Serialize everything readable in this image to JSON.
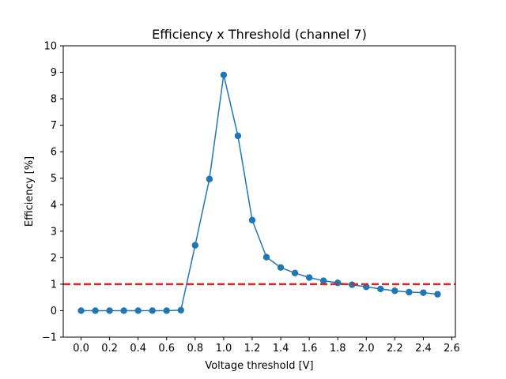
{
  "chart_data": {
    "type": "line",
    "title": "Efficiency x Threshold (channel 7)",
    "xlabel": "Voltage threshold [V]",
    "ylabel": "Efficiency [%]",
    "xlim": [
      -0.125,
      2.625
    ],
    "ylim": [
      -1,
      10
    ],
    "x_ticks": [
      0.0,
      0.2,
      0.4,
      0.6,
      0.8,
      1.0,
      1.2,
      1.4,
      1.6,
      1.8,
      2.0,
      2.2,
      2.4,
      2.6
    ],
    "x_tick_labels": [
      "0.0",
      "0.2",
      "0.4",
      "0.6",
      "0.8",
      "1.0",
      "1.2",
      "1.4",
      "1.6",
      "1.8",
      "2.0",
      "2.2",
      "2.4",
      "2.6"
    ],
    "y_ticks": [
      -1,
      0,
      1,
      2,
      3,
      4,
      5,
      6,
      7,
      8,
      9,
      10
    ],
    "y_tick_labels": [
      "−1",
      "0",
      "1",
      "2",
      "3",
      "4",
      "5",
      "6",
      "7",
      "8",
      "9",
      "10"
    ],
    "grid": false,
    "series": [
      {
        "color": "#1f77b4",
        "marker": "circle",
        "x": [
          0.0,
          0.1,
          0.2,
          0.3,
          0.4,
          0.5,
          0.6,
          0.7,
          0.8,
          0.9,
          1.0,
          1.1,
          1.2,
          1.3,
          1.4,
          1.5,
          1.6,
          1.7,
          1.8,
          1.9,
          2.0,
          2.1,
          2.2,
          2.3,
          2.4,
          2.5
        ],
        "y": [
          0.0,
          0.0,
          0.0,
          0.0,
          0.0,
          0.0,
          0.0,
          0.02,
          2.47,
          4.97,
          8.9,
          6.6,
          3.42,
          2.02,
          1.63,
          1.42,
          1.25,
          1.13,
          1.05,
          0.98,
          0.9,
          0.82,
          0.75,
          0.7,
          0.68,
          0.62
        ]
      }
    ],
    "reference_lines": [
      {
        "orientation": "horizontal",
        "y": 1,
        "color": "#d62728",
        "style": "dashed"
      }
    ]
  }
}
